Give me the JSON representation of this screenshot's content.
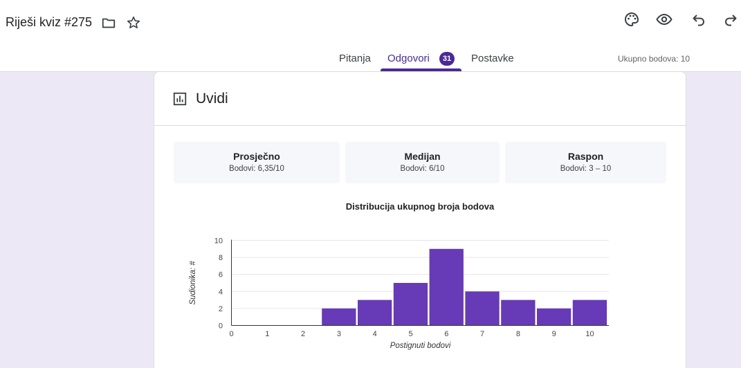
{
  "header": {
    "title": "Riješi kviz #275",
    "icons": [
      "folder-icon",
      "star-icon",
      "palette-icon",
      "eye-icon",
      "undo-icon",
      "redo-icon"
    ]
  },
  "tabs": [
    {
      "label": "Pitanja"
    },
    {
      "label": "Odgovori",
      "badge": "31",
      "active": true
    },
    {
      "label": "Postavke"
    }
  ],
  "total_points": "Ukupno bodova: 10",
  "insights": {
    "title": "Uvidi",
    "stats": [
      {
        "title": "Prosječno",
        "value": "Bodovi: 6,35/10"
      },
      {
        "title": "Medijan",
        "value": "Bodovi: 6/10"
      },
      {
        "title": "Raspon",
        "value": "Bodovi: 3 – 10"
      }
    ]
  },
  "colors": {
    "accent": "#4b2a93",
    "bar": "#673ab7",
    "background": "#ede8f6"
  },
  "chart_data": {
    "type": "bar",
    "title": "Distribucija ukupnog broja bodova",
    "xlabel": "Postignuti bodovi",
    "ylabel": "Sudionika: #",
    "categories": [
      "0",
      "1",
      "2",
      "3",
      "4",
      "5",
      "6",
      "7",
      "8",
      "9",
      "10"
    ],
    "values": [
      0,
      0,
      0,
      2,
      3,
      5,
      9,
      4,
      3,
      2,
      3
    ],
    "yticks": [
      "0",
      "2",
      "4",
      "6",
      "8",
      "10"
    ],
    "ylim": [
      0,
      10
    ],
    "grid": true
  }
}
